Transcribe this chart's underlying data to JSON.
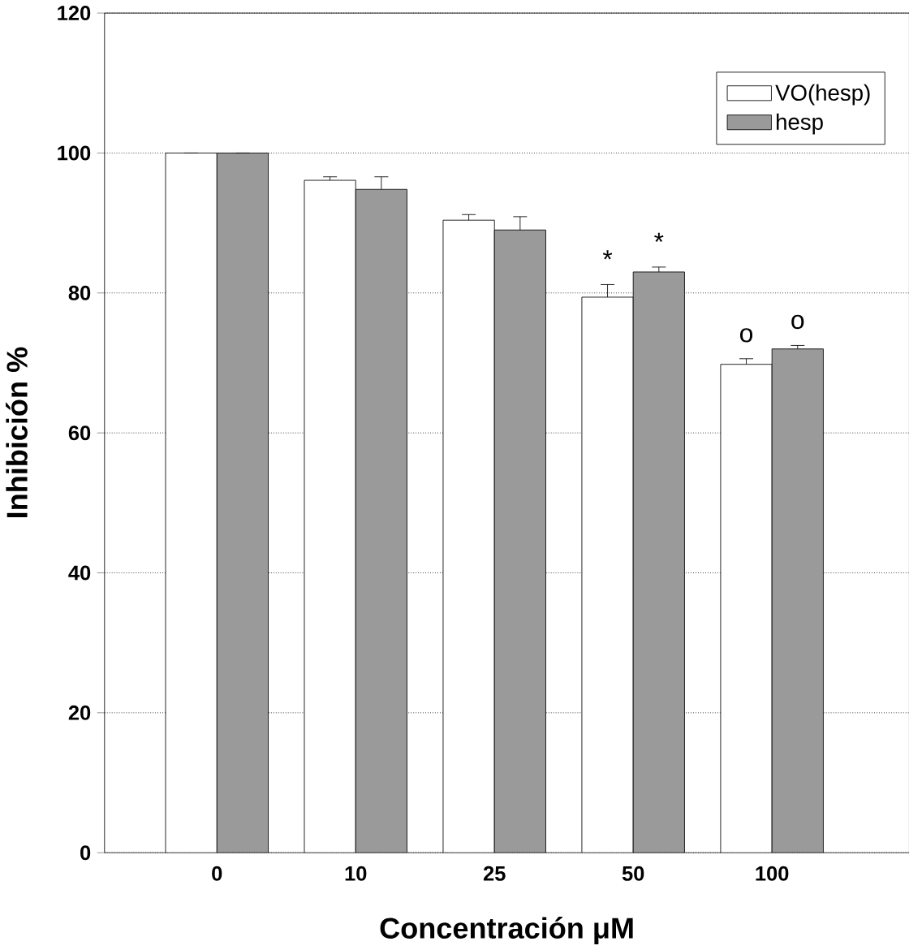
{
  "chart_data": {
    "type": "bar",
    "xlabel": "Concentración μM",
    "ylabel": "Inhibición %",
    "categories": [
      "0",
      "10",
      "25",
      "50",
      "100"
    ],
    "series": [
      {
        "name": "VO(hesp)",
        "color": "#ffffff",
        "values": [
          100,
          96.1,
          90.4,
          79.4,
          69.8
        ],
        "errors": [
          null,
          0.5,
          0.8,
          1.8,
          0.8
        ]
      },
      {
        "name": "hesp",
        "color": "#9a9a9a",
        "values": [
          100,
          94.8,
          89.0,
          83.0,
          72.0
        ],
        "errors": [
          null,
          1.8,
          1.9,
          0.7,
          0.5
        ]
      }
    ],
    "ylim": [
      0,
      120
    ],
    "yticks": [
      0,
      20,
      40,
      60,
      80,
      100,
      120
    ],
    "grid": "y",
    "legend": "top right",
    "annotations": [
      {
        "text": "*",
        "x": "50",
        "y": 79.4
      },
      {
        "text": "*",
        "x": "50",
        "y": 83.0
      },
      {
        "text": "o",
        "x": "100",
        "y": 69.8
      },
      {
        "text": "o",
        "x": "100",
        "y": 72.0
      }
    ]
  }
}
